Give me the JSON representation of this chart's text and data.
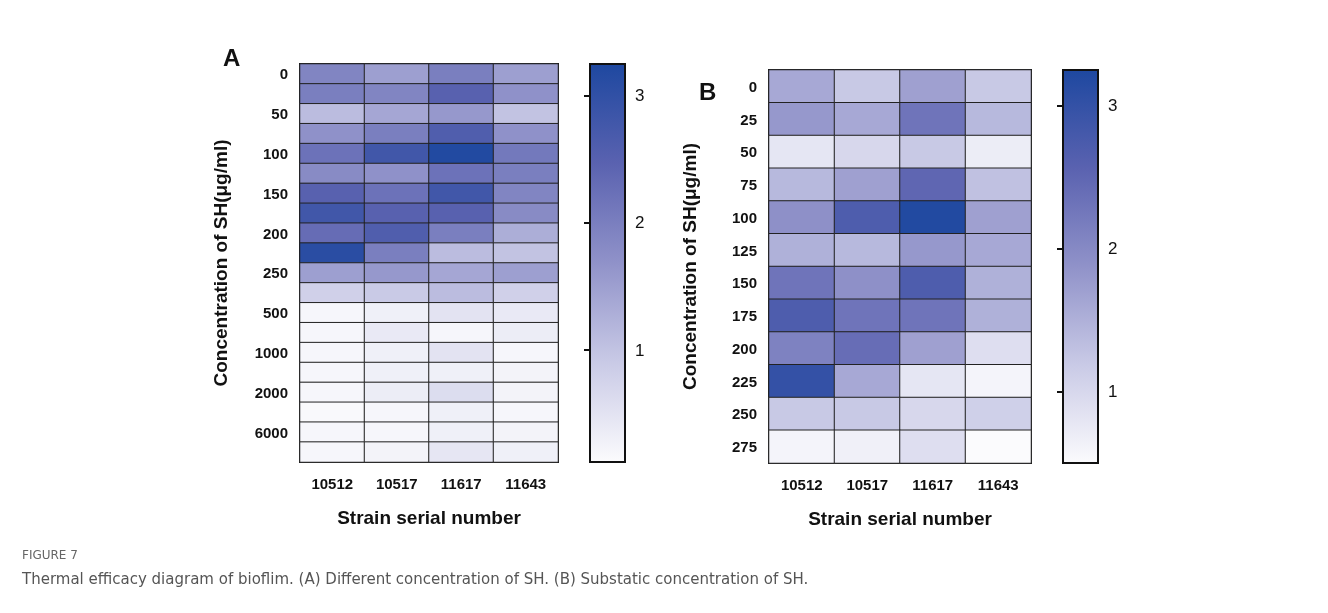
{
  "chart_data": [
    {
      "type": "heatmap",
      "title": "A",
      "xlabel": "Strain serial number",
      "ylabel": "Concentration of SH(μg/ml)",
      "categories": [
        "10512",
        "10517",
        "11617",
        "11643"
      ],
      "y_categories": [
        "0",
        null,
        "50",
        null,
        "100",
        null,
        "150",
        null,
        "200",
        null,
        "250",
        null,
        "500",
        null,
        "1000",
        null,
        "2000",
        null,
        "6000",
        null
      ],
      "cells": [
        [
          1.9,
          1.5,
          2.0,
          1.5
        ],
        [
          2.0,
          1.9,
          2.5,
          1.7
        ],
        [
          1.1,
          1.4,
          1.6,
          1.0
        ],
        [
          1.7,
          2.0,
          2.6,
          1.7
        ],
        [
          2.2,
          2.8,
          3.2,
          2.1
        ],
        [
          1.8,
          1.7,
          2.2,
          2.0
        ],
        [
          2.5,
          2.2,
          2.8,
          1.9
        ],
        [
          2.8,
          2.5,
          2.5,
          1.8
        ],
        [
          2.3,
          2.6,
          2.0,
          1.3
        ],
        [
          3.1,
          2.0,
          1.1,
          1.0
        ],
        [
          1.5,
          1.6,
          1.4,
          1.5
        ],
        [
          0.8,
          0.9,
          1.1,
          0.8
        ],
        [
          0.2,
          0.3,
          0.5,
          0.4
        ],
        [
          0.2,
          0.4,
          0.2,
          0.35
        ],
        [
          0.2,
          0.3,
          0.5,
          0.2
        ],
        [
          0.2,
          0.3,
          0.3,
          0.25
        ],
        [
          0.2,
          0.35,
          0.6,
          0.25
        ],
        [
          0.15,
          0.2,
          0.3,
          0.2
        ],
        [
          0.2,
          0.2,
          0.3,
          0.25
        ],
        [
          0.2,
          0.25,
          0.45,
          0.3
        ]
      ],
      "clim": [
        0.12,
        3.25
      ],
      "cticks": [
        1,
        2,
        3
      ],
      "annotations": [
        "FIGURE 7",
        "Thermal efficacy diagram of bioflim. (A) Different concentration of SH. (B) Substatic concentration of SH."
      ]
    },
    {
      "type": "heatmap",
      "title": "B",
      "xlabel": "Strain serial number",
      "ylabel": "Concentration of SH(μg/ml)",
      "categories": [
        "10512",
        "10517",
        "11617",
        "11643"
      ],
      "y_categories": [
        "0",
        "25",
        "50",
        "75",
        "100",
        "125",
        "150",
        "175",
        "200",
        "225",
        "250",
        "275"
      ],
      "cells": [
        [
          1.6,
          1.2,
          1.7,
          1.2
        ],
        [
          1.8,
          1.6,
          2.3,
          1.4
        ],
        [
          0.8,
          1.0,
          1.2,
          0.7
        ],
        [
          1.4,
          1.7,
          2.5,
          1.3
        ],
        [
          1.9,
          2.7,
          3.2,
          1.7
        ],
        [
          1.5,
          1.4,
          1.8,
          1.6
        ],
        [
          2.3,
          1.9,
          2.7,
          1.5
        ],
        [
          2.7,
          2.3,
          2.3,
          1.5
        ],
        [
          2.1,
          2.4,
          1.7,
          0.9
        ],
        [
          3.0,
          1.6,
          0.8,
          0.6
        ],
        [
          1.2,
          1.2,
          1.0,
          1.1
        ],
        [
          0.6,
          0.65,
          0.9,
          0.5
        ]
      ],
      "clim": [
        0.5,
        3.25
      ],
      "cticks": [
        1,
        2,
        3
      ]
    }
  ]
}
